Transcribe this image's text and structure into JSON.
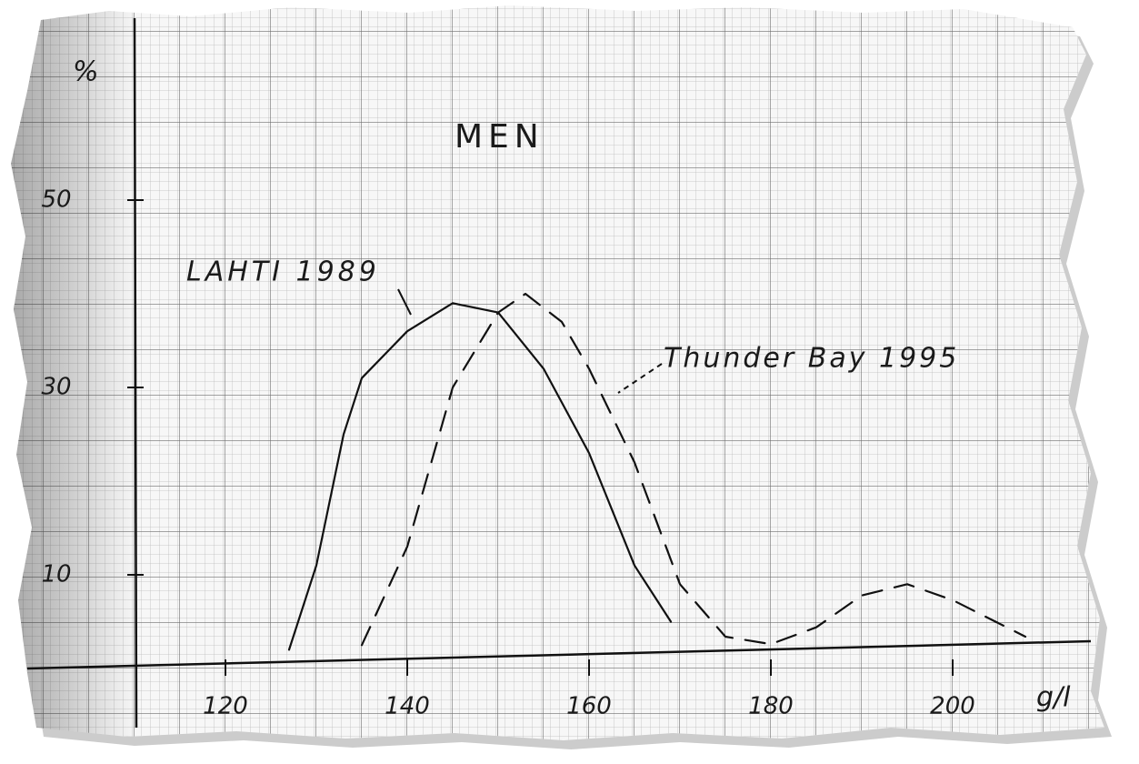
{
  "chart_data": {
    "type": "line",
    "title": "MEN",
    "x_label": "g/l",
    "y_label": "%",
    "xlim": [
      110,
      210
    ],
    "xticks": [
      120,
      140,
      160,
      180,
      200
    ],
    "ylim": [
      0,
      70
    ],
    "yticks": [
      10,
      30,
      50
    ],
    "annotations": [
      "LAHTI 1989",
      "Thunder Bay 1995"
    ],
    "series": [
      {
        "name": "LAHTI 1989",
        "color": "#111111",
        "linestyle": "solid",
        "x": [
          127,
          130,
          133,
          135,
          140,
          145,
          150,
          155,
          160,
          165,
          169
        ],
        "values": [
          2,
          11,
          25,
          31,
          36,
          39,
          38,
          32,
          23,
          11,
          5
        ]
      },
      {
        "name": "Thunder Bay 1995",
        "color": "#111111",
        "linestyle": "dashed",
        "x": [
          135,
          140,
          145,
          150,
          153,
          157,
          160,
          165,
          170,
          175,
          180,
          185,
          190,
          195,
          200,
          208
        ],
        "values": [
          2.5,
          13,
          30,
          38,
          40,
          37,
          32,
          22,
          9,
          3.4,
          2.6,
          4.4,
          7.8,
          9,
          7.3,
          3.4
        ]
      }
    ]
  }
}
